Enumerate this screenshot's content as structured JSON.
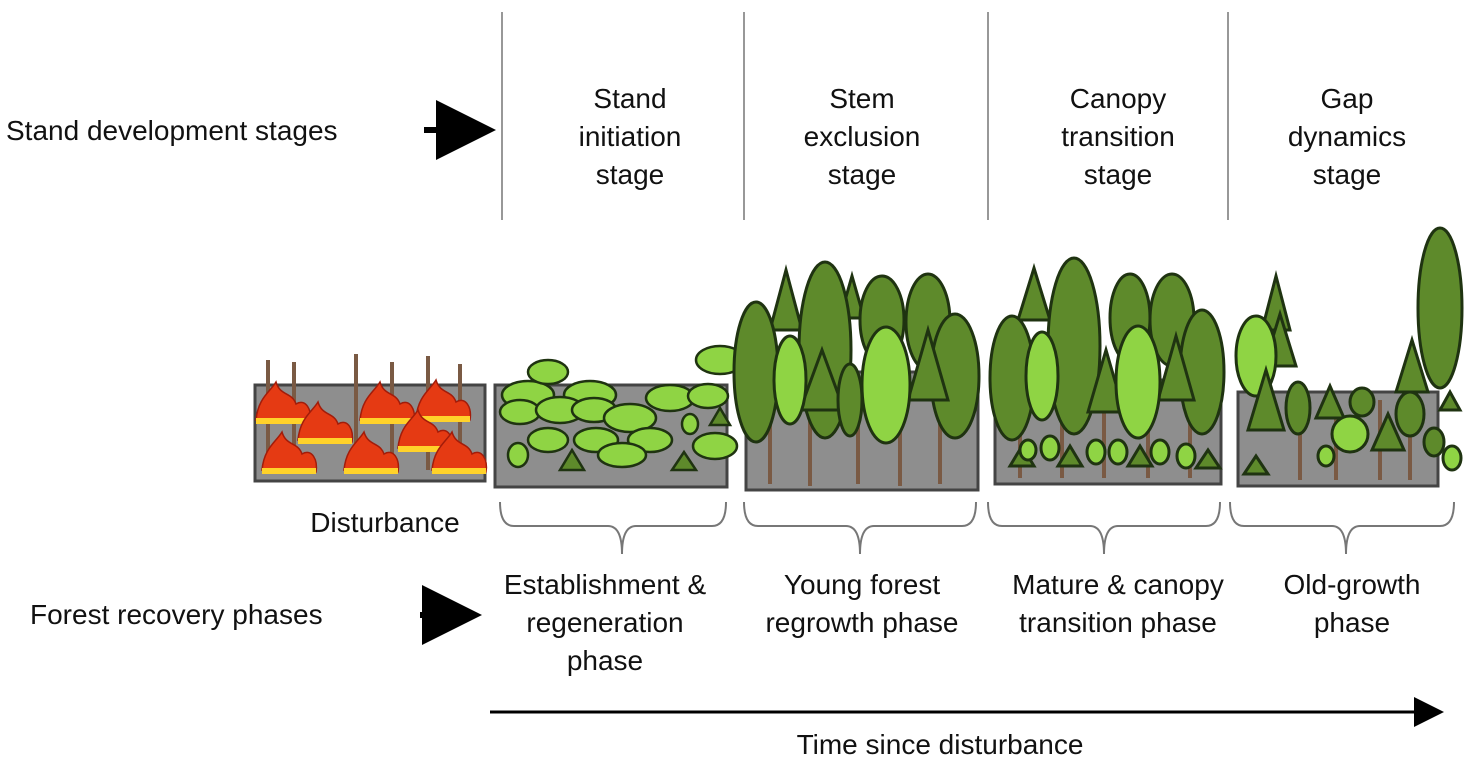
{
  "stages_row": {
    "label": "Stand development stages",
    "stages": [
      "Stand\ninitiation\nstage",
      "Stem\nexclusion\nstage",
      "Canopy\ntransition\nstage",
      "Gap\ndynamics\nstage"
    ]
  },
  "disturbance": {
    "label": "Disturbance"
  },
  "phases_row": {
    "label": "Forest recovery phases",
    "phases": [
      "Establishment &\nregeneration\nphase",
      "Young forest\nregrowth phase",
      "Mature & canopy\ntransition phase",
      "Old-growth\nphase"
    ]
  },
  "time_axis": {
    "label": "Time since disturbance"
  },
  "colors": {
    "dark_green": "#5e8a2b",
    "light_green": "#8fd444",
    "ground": "#8e8e8e",
    "trunk": "#7a5a44",
    "fire_red": "#e53a13",
    "fire_yellow": "#ffd22a",
    "outline": "#1f3311"
  }
}
